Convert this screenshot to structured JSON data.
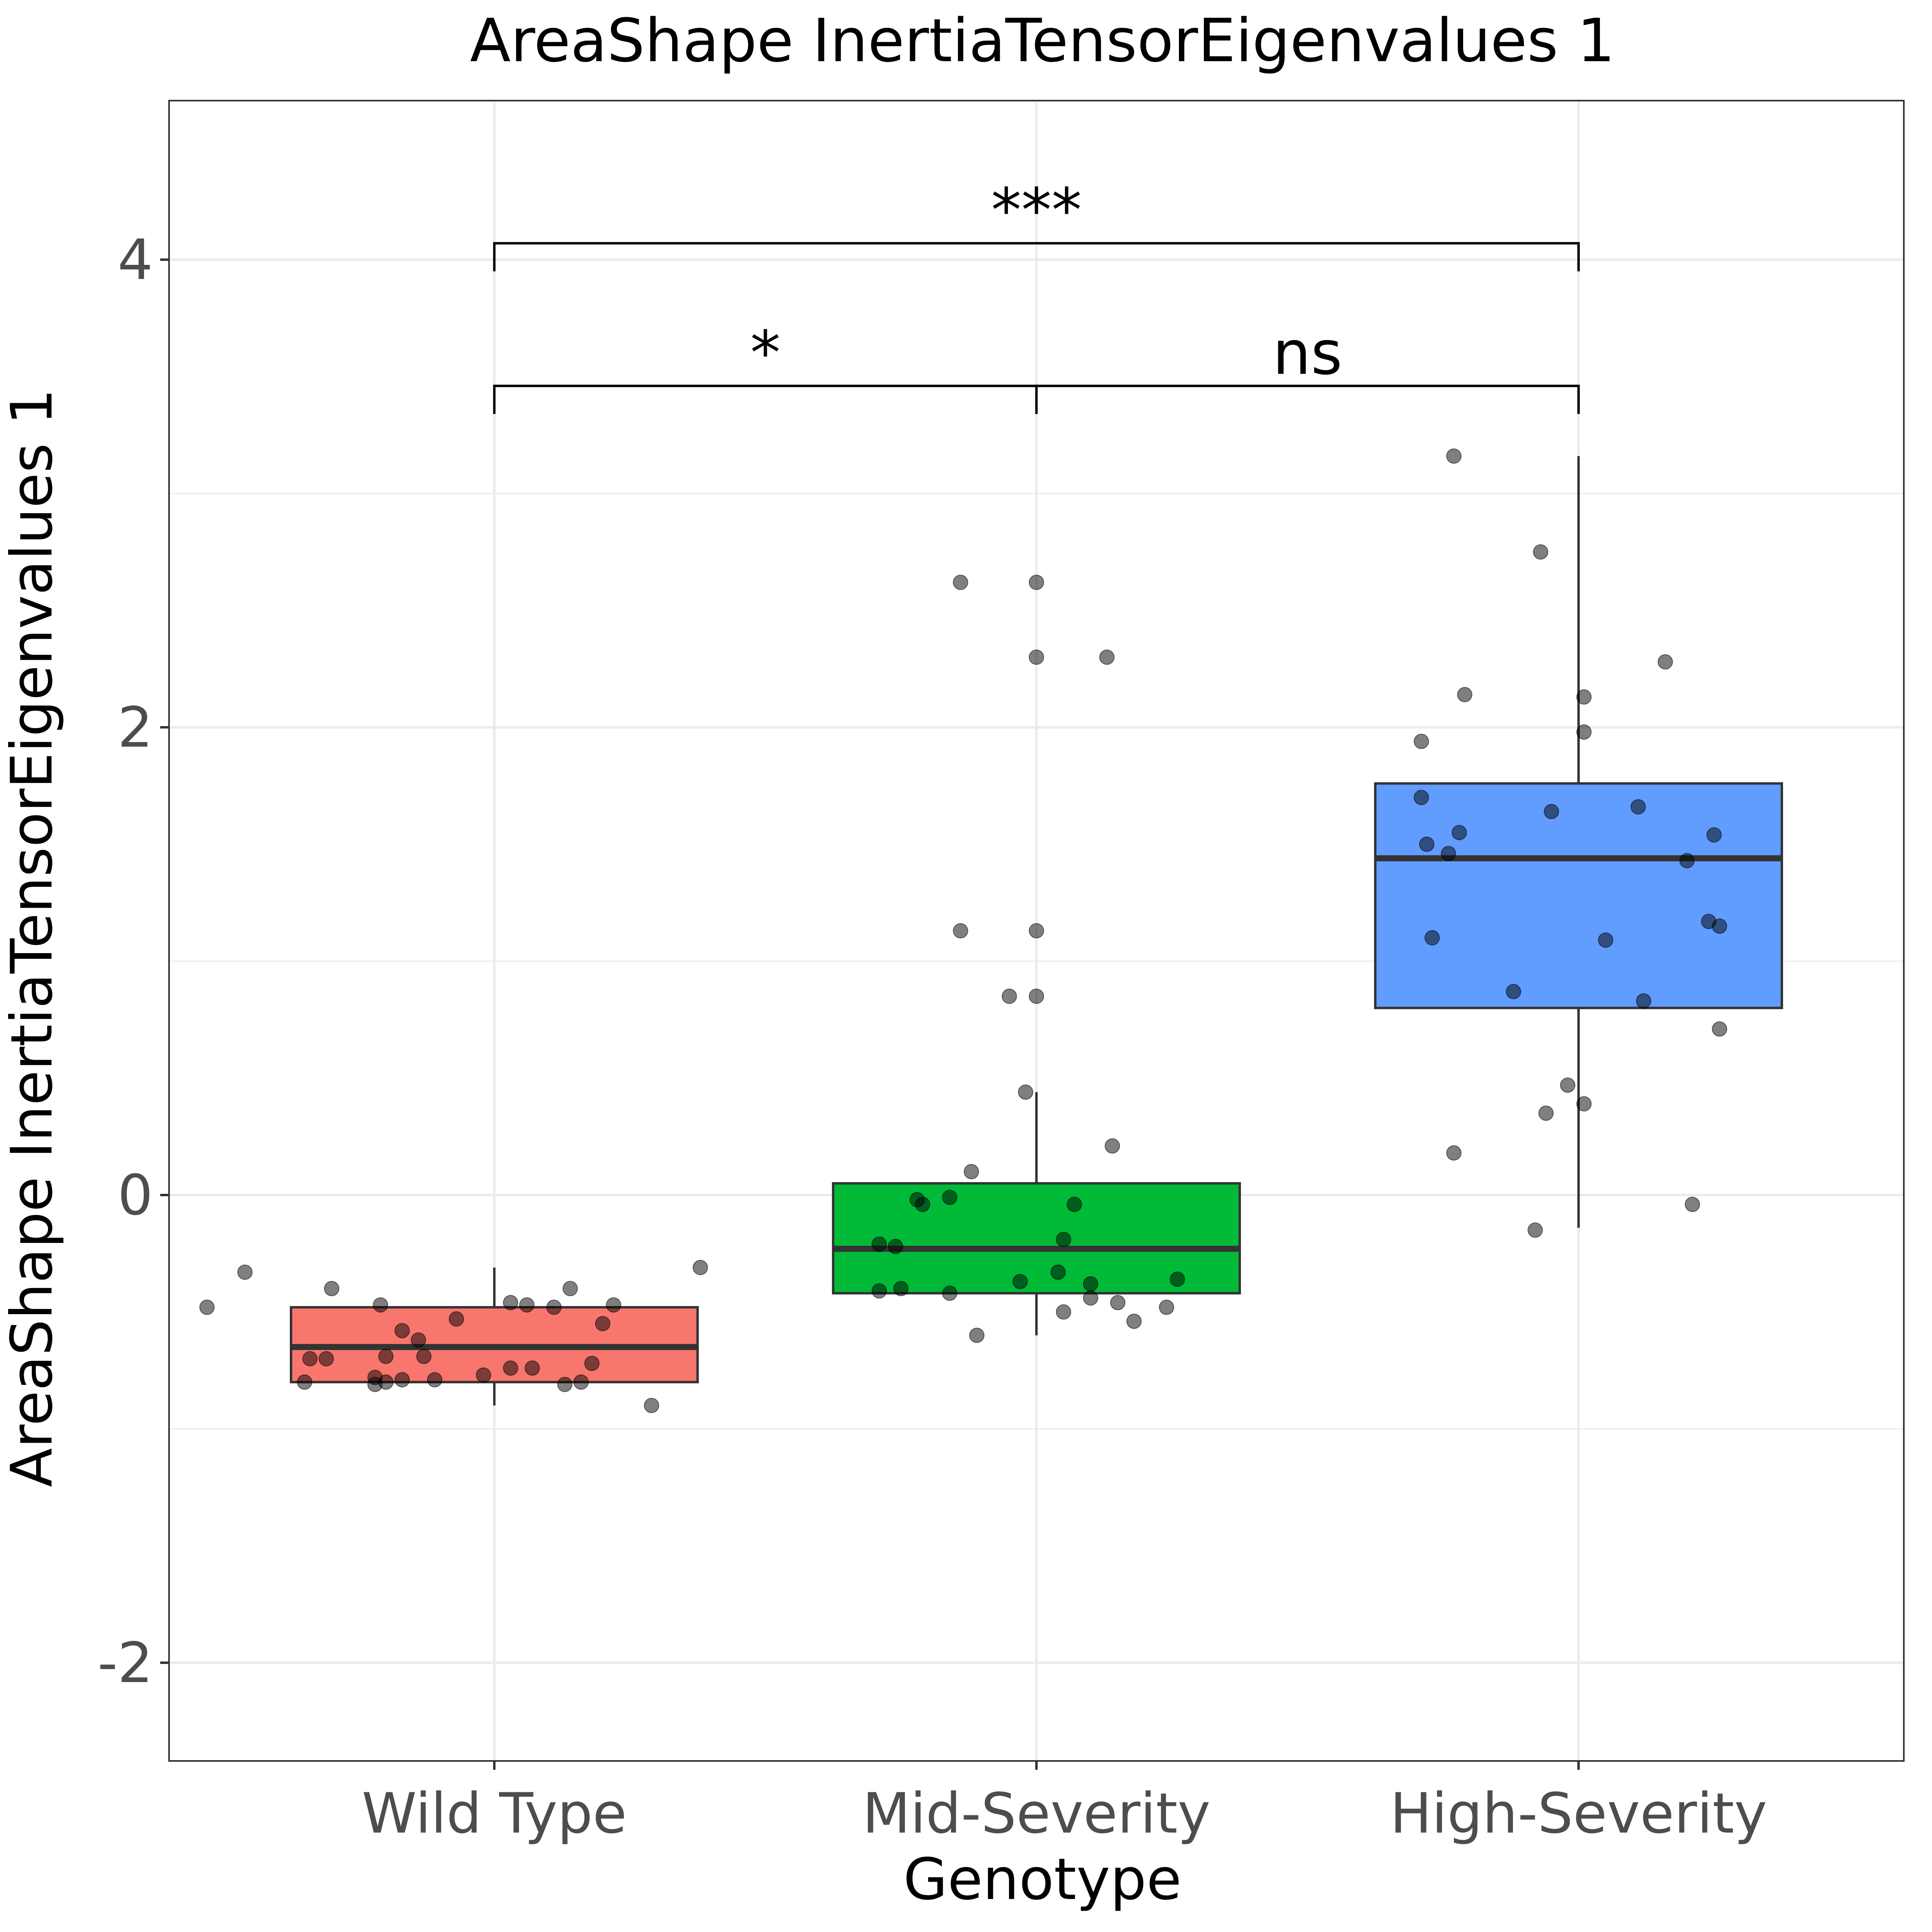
{
  "chart_data": {
    "type": "box",
    "title": "AreaShape InertiaTensorEigenvalues 1",
    "xlabel": "Genotype",
    "ylabel": "AreaShape InertiaTensorEigenvalues 1",
    "ylim": [
      -2.42,
      4.68
    ],
    "y_ticks": [
      {
        "value": -2,
        "label": "-2"
      },
      {
        "value": 0,
        "label": "0"
      },
      {
        "value": 2,
        "label": "2"
      },
      {
        "value": 4,
        "label": "4"
      }
    ],
    "grid": true,
    "categories": [
      "Wild Type",
      "Mid-Severity",
      "High-Severity"
    ],
    "groups": [
      {
        "category": "Wild Type",
        "color": "#F8766D",
        "box": {
          "q1": -0.8,
          "median": -0.65,
          "q3": -0.48,
          "whisker_low": -0.9,
          "whisker_high": -0.31
        },
        "points": [
          [
            -0.3,
            -0.4
          ],
          [
            0.14,
            -0.4
          ],
          [
            -0.46,
            -0.33
          ],
          [
            0.38,
            -0.31
          ],
          [
            -0.53,
            -0.48
          ],
          [
            -0.21,
            -0.47
          ],
          [
            0.06,
            -0.47
          ],
          [
            0.03,
            -0.46
          ],
          [
            0.11,
            -0.48
          ],
          [
            0.22,
            -0.47
          ],
          [
            -0.07,
            -0.53
          ],
          [
            0.2,
            -0.55
          ],
          [
            -0.17,
            -0.58
          ],
          [
            -0.14,
            -0.62
          ],
          [
            -0.2,
            -0.69
          ],
          [
            -0.31,
            -0.7
          ],
          [
            -0.34,
            -0.7
          ],
          [
            -0.13,
            -0.69
          ],
          [
            0.07,
            -0.74
          ],
          [
            0.18,
            -0.72
          ],
          [
            0.03,
            -0.74
          ],
          [
            -0.22,
            -0.78
          ],
          [
            -0.02,
            -0.77
          ],
          [
            -0.17,
            -0.79
          ],
          [
            -0.11,
            -0.79
          ],
          [
            -0.35,
            -0.8
          ],
          [
            -0.2,
            -0.8
          ],
          [
            0.13,
            -0.81
          ],
          [
            0.16,
            -0.8
          ],
          [
            -0.22,
            -0.81
          ],
          [
            0.29,
            -0.9
          ]
        ]
      },
      {
        "category": "Mid-Severity",
        "color": "#00BA38",
        "box": {
          "q1": -0.42,
          "median": -0.23,
          "q3": 0.05,
          "whisker_low": -0.6,
          "whisker_high": 0.44
        },
        "points": [
          [
            -0.14,
            2.62
          ],
          [
            0.0,
            2.62
          ],
          [
            0.0,
            2.3
          ],
          [
            0.13,
            2.3
          ],
          [
            -0.14,
            1.13
          ],
          [
            0.0,
            1.13
          ],
          [
            -0.05,
            0.85
          ],
          [
            0.0,
            0.85
          ],
          [
            -0.02,
            0.44
          ],
          [
            0.14,
            0.21
          ],
          [
            -0.12,
            0.1
          ],
          [
            -0.21,
            -0.04
          ],
          [
            -0.22,
            -0.02
          ],
          [
            -0.16,
            -0.01
          ],
          [
            0.07,
            -0.04
          ],
          [
            -0.29,
            -0.21
          ],
          [
            -0.26,
            -0.22
          ],
          [
            0.05,
            -0.19
          ],
          [
            0.04,
            -0.33
          ],
          [
            -0.03,
            -0.37
          ],
          [
            0.26,
            -0.36
          ],
          [
            0.1,
            -0.38
          ],
          [
            -0.29,
            -0.41
          ],
          [
            -0.25,
            -0.4
          ],
          [
            -0.16,
            -0.42
          ],
          [
            0.1,
            -0.44
          ],
          [
            0.15,
            -0.46
          ],
          [
            0.24,
            -0.48
          ],
          [
            0.05,
            -0.5
          ],
          [
            0.18,
            -0.54
          ],
          [
            -0.11,
            -0.6
          ]
        ]
      },
      {
        "category": "High-Severity",
        "color": "#619CFF",
        "box": {
          "q1": 0.8,
          "median": 1.44,
          "q3": 1.76,
          "whisker_low": -0.14,
          "whisker_high": 3.16
        },
        "points": [
          [
            -0.23,
            3.16
          ],
          [
            -0.07,
            2.75
          ],
          [
            0.16,
            2.28
          ],
          [
            -0.21,
            2.14
          ],
          [
            0.01,
            2.13
          ],
          [
            0.01,
            1.98
          ],
          [
            -0.29,
            1.94
          ],
          [
            -0.29,
            1.7
          ],
          [
            -0.05,
            1.64
          ],
          [
            0.11,
            1.66
          ],
          [
            -0.22,
            1.55
          ],
          [
            0.25,
            1.54
          ],
          [
            -0.28,
            1.5
          ],
          [
            -0.24,
            1.46
          ],
          [
            0.2,
            1.43
          ],
          [
            0.24,
            1.17
          ],
          [
            0.26,
            1.15
          ],
          [
            -0.27,
            1.1
          ],
          [
            0.05,
            1.09
          ],
          [
            -0.12,
            0.87
          ],
          [
            0.12,
            0.83
          ],
          [
            0.26,
            0.71
          ],
          [
            -0.02,
            0.47
          ],
          [
            -0.06,
            0.35
          ],
          [
            0.01,
            0.39
          ],
          [
            -0.23,
            0.18
          ],
          [
            0.21,
            -0.04
          ],
          [
            -0.08,
            -0.15
          ]
        ]
      }
    ],
    "comparisons": [
      {
        "from": "Wild Type",
        "to": "Mid-Severity",
        "label": "*",
        "y": 3.46,
        "tip": 0.12
      },
      {
        "from": "Mid-Severity",
        "to": "High-Severity",
        "label": "ns",
        "y": 3.46,
        "tip": 0.12
      },
      {
        "from": "Wild Type",
        "to": "High-Severity",
        "label": "***",
        "y": 4.07,
        "tip": 0.12
      }
    ]
  }
}
